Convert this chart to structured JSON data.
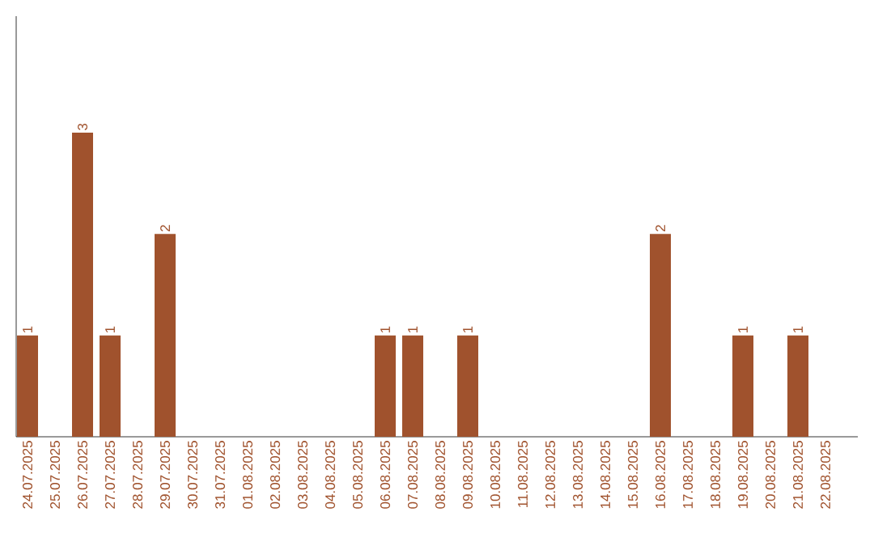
{
  "chart_data": {
    "type": "bar",
    "categories": [
      "24.07.2025",
      "25.07.2025",
      "26.07.2025",
      "27.07.2025",
      "28.07.2025",
      "29.07.2025",
      "30.07.2025",
      "31.07.2025",
      "01.08.2025",
      "02.08.2025",
      "03.08.2025",
      "04.08.2025",
      "05.08.2025",
      "06.08.2025",
      "07.08.2025",
      "08.08.2025",
      "09.08.2025",
      "10.08.2025",
      "11.08.2025",
      "12.08.2025",
      "13.08.2025",
      "14.08.2025",
      "15.08.2025",
      "16.08.2025",
      "17.08.2025",
      "18.08.2025",
      "19.08.2025",
      "20.08.2025",
      "21.08.2025",
      "22.08.2025"
    ],
    "values": [
      1,
      0,
      3,
      1,
      0,
      2,
      0,
      0,
      0,
      0,
      0,
      0,
      0,
      1,
      1,
      0,
      1,
      0,
      0,
      0,
      0,
      0,
      0,
      2,
      0,
      0,
      1,
      0,
      1,
      0
    ],
    "value_labels": [
      "1",
      null,
      "3",
      "1",
      null,
      "2",
      null,
      null,
      null,
      null,
      null,
      null,
      null,
      "1",
      "1",
      null,
      "1",
      null,
      null,
      null,
      null,
      null,
      null,
      "2",
      null,
      null,
      "1",
      null,
      "1",
      null
    ],
    "color": "#a0522d"
  }
}
